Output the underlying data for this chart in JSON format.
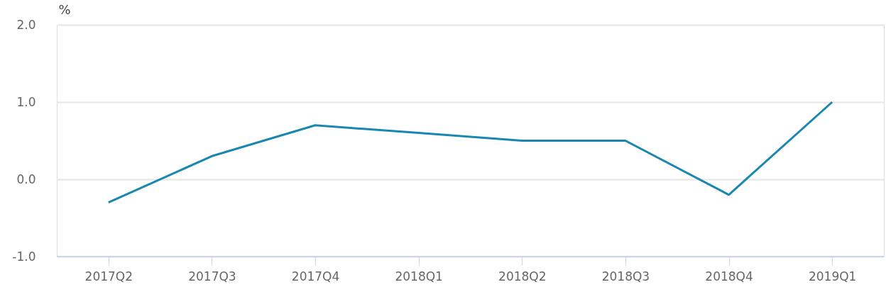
{
  "chart_data": {
    "type": "line",
    "ylabel": "%",
    "categories": [
      "2017Q2",
      "2017Q3",
      "2017Q4",
      "2018Q1",
      "2018Q2",
      "2018Q3",
      "2018Q4",
      "2019Q1"
    ],
    "series": [
      {
        "color": "#1a87b0",
        "values": [
          -0.3,
          0.3,
          0.7,
          0.6,
          0.5,
          0.5,
          -0.2,
          1.0
        ]
      }
    ],
    "ylim": [
      -1,
      2
    ],
    "yticks": [
      {
        "value": -1,
        "label": "-1.0"
      },
      {
        "value": 0,
        "label": "0.0"
      },
      {
        "value": 1,
        "label": "1.0"
      },
      {
        "value": 2,
        "label": "2.0"
      }
    ],
    "grid": "y",
    "marker": "none",
    "line_style": "solid"
  }
}
